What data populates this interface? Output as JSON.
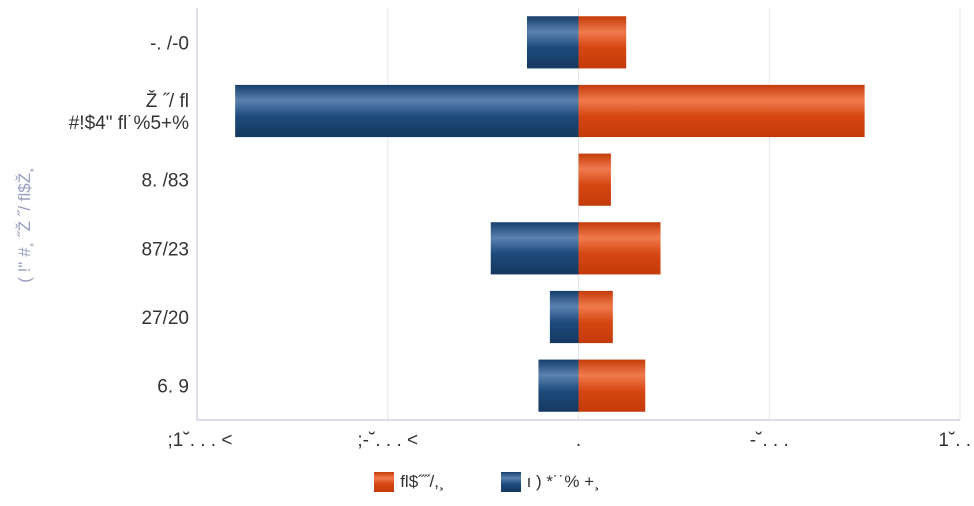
{
  "chart_data": {
    "type": "bar",
    "orientation": "horizontal",
    "stacking": "diverging",
    "categories": [
      "-. /-0",
      "Ž ˝/ fl\n#!$4\" fl˙%5+%",
      "8. /83",
      "87/23",
      "27/20",
      "6. 9"
    ],
    "series": [
      {
        "name": "fl$˝˝/,¸",
        "color": "#d3450f",
        "values": [
          0.25,
          1.5,
          0.17,
          0.43,
          0.18,
          0.35
        ]
      },
      {
        "name": "ı ) *˙˙% +¸",
        "color": "#1e4a79",
        "values": [
          -0.27,
          -1.8,
          0.0,
          -0.46,
          -0.15,
          -0.21
        ]
      }
    ],
    "xlim": [
      -2,
      2
    ],
    "xticks": [
      -2,
      -1,
      0,
      1,
      2
    ],
    "xtick_labels": [
      ";1˘. . . <",
      ";-˘. . . <",
      ".",
      "-˘. . .",
      "1˘. . ."
    ],
    "ylabel": "( !\" #¸ ˝Ž ˝/ fl$Ž¸",
    "xlabel": "",
    "grid": "vertical",
    "legend_position": "bottom"
  }
}
